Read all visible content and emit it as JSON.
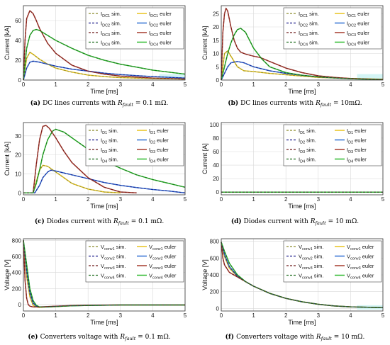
{
  "colors": {
    "DC1": "#e8c21e",
    "DC2": "#2f6fd3",
    "DC3": "#a63a2c",
    "DC4": "#2db82d",
    "sim_1": "#8a8a2a",
    "sim_2": "#1b1b8a",
    "sim_3": "#6e1a1a",
    "sim_4": "#1b6b1b",
    "grid": "#d9d9d9",
    "fill_1": "#c9f2f2",
    "fill_2": "#cfeee0"
  },
  "chart_data": [
    {
      "type": "line",
      "caption_label": "(a)",
      "caption_text": "DC lines currents with",
      "caption_r_sym": "R",
      "caption_r_sub": "fault",
      "caption_value": " = 0.1 mΩ.",
      "xlabel": "Time [ms]",
      "ylabel": "Current [kA]",
      "xlim": [
        0,
        5
      ],
      "ylim": [
        0,
        75
      ],
      "xticks": [
        "0",
        "1",
        "2",
        "3",
        "4",
        "5"
      ],
      "yticks": [
        "0",
        "20",
        "40",
        "60"
      ],
      "yticks_values": [
        0,
        20,
        40,
        60
      ],
      "grid": true,
      "legend_position": "top-right",
      "legend": {
        "sim": [
          "I",
          "I",
          "I",
          "I"
        ],
        "sim_sub": [
          "DC1",
          "DC2",
          "DC3",
          "DC4"
        ],
        "sim_suffix": "sim.",
        "euler": [
          "I",
          "I",
          "I",
          "I"
        ],
        "euler_sub": [
          "DC1",
          "DC2",
          "DC3",
          "DC4"
        ],
        "euler_suffix": "euler"
      },
      "series": [
        {
          "x": [
            0,
            0.1,
            0.2,
            0.3,
            0.5,
            0.75,
            1,
            1.5,
            2,
            2.5,
            3,
            3.5,
            4,
            5
          ],
          "y": [
            0,
            22,
            28,
            26,
            21,
            16,
            12,
            8,
            5,
            3.5,
            2.5,
            2,
            1.5,
            1
          ]
        },
        {
          "x": [
            0,
            0.1,
            0.2,
            0.3,
            0.5,
            0.75,
            1,
            1.5,
            2,
            2.5,
            3,
            3.5,
            4,
            5
          ],
          "y": [
            0,
            12,
            18,
            19,
            18,
            16,
            14,
            11,
            9,
            7,
            5.5,
            4.5,
            3.5,
            2
          ]
        },
        {
          "x": [
            0,
            0.05,
            0.1,
            0.2,
            0.3,
            0.4,
            0.5,
            0.75,
            1,
            1.5,
            2,
            2.5,
            3,
            3.5,
            4,
            5
          ],
          "y": [
            0,
            40,
            62,
            70,
            67,
            60,
            52,
            37,
            27,
            15,
            9,
            6,
            4,
            3,
            2,
            1
          ]
        },
        {
          "x": [
            0,
            0.1,
            0.2,
            0.3,
            0.4,
            0.5,
            0.75,
            1,
            1.5,
            2,
            2.5,
            3,
            3.5,
            4,
            5
          ],
          "y": [
            0,
            32,
            45,
            50,
            51,
            50,
            45,
            40,
            32,
            25,
            20,
            16,
            13,
            10,
            6
          ]
        }
      ]
    },
    {
      "type": "line",
      "caption_label": "(b)",
      "caption_text": "DC lines currents with",
      "caption_r_sym": "R",
      "caption_r_sub": "fault",
      "caption_value": " = 10mΩ.",
      "xlabel": "Time [ms]",
      "ylabel": "Current [kA]",
      "xlim": [
        0,
        5
      ],
      "ylim": [
        0,
        28
      ],
      "xticks": [
        "0",
        "1",
        "2",
        "3",
        "4",
        "5"
      ],
      "yticks": [
        "0",
        "5",
        "10",
        "15",
        "20",
        "25"
      ],
      "yticks_values": [
        0,
        5,
        10,
        15,
        20,
        25
      ],
      "grid": true,
      "legend_position": "top-right",
      "legend": {
        "sim": [
          "I",
          "I",
          "I",
          "I"
        ],
        "sim_sub": [
          "DC1",
          "DC2",
          "DC3",
          "DC4"
        ],
        "sim_suffix": "sim.",
        "euler": [
          "I",
          "I",
          "I",
          "I"
        ],
        "euler_sub": [
          "DC1",
          "DC2",
          "DC3",
          "DC4"
        ],
        "euler_suffix": "euler"
      },
      "series": [
        {
          "x": [
            0,
            0.1,
            0.2,
            0.3,
            0.5,
            0.7,
            1,
            1.5,
            2,
            2.5,
            3,
            3.5,
            4,
            5
          ],
          "y": [
            0,
            10,
            11,
            9,
            5,
            3.5,
            3.2,
            2.5,
            2,
            1.5,
            1,
            0.8,
            0.6,
            0.3
          ]
        },
        {
          "x": [
            0,
            0.1,
            0.2,
            0.3,
            0.5,
            0.7,
            1,
            1.5,
            2,
            2.5,
            3,
            3.5,
            4,
            5
          ],
          "y": [
            0,
            2.5,
            5,
            6.5,
            7,
            6.5,
            5,
            3.5,
            2.5,
            1.8,
            1.2,
            0.8,
            0.5,
            0.2
          ]
        },
        {
          "x": [
            0,
            0.05,
            0.1,
            0.15,
            0.2,
            0.3,
            0.4,
            0.5,
            0.6,
            0.75,
            1,
            1.2,
            1.5,
            2,
            2.5,
            3,
            3.5,
            4,
            5
          ],
          "y": [
            0,
            18,
            25,
            27,
            26,
            20,
            15,
            12,
            10.5,
            9.8,
            9,
            8.5,
            7,
            4.5,
            2.8,
            1.6,
            1,
            0.6,
            0.2
          ]
        },
        {
          "x": [
            0,
            0.1,
            0.2,
            0.3,
            0.4,
            0.5,
            0.6,
            0.75,
            1,
            1.25,
            1.5,
            2,
            2.5,
            3,
            3.5,
            4,
            5
          ],
          "y": [
            0,
            5,
            10,
            14,
            17,
            19,
            19.5,
            18,
            12,
            8,
            5,
            2.8,
            1.8,
            1.2,
            0.8,
            0.5,
            0.2
          ]
        }
      ]
    },
    {
      "type": "line",
      "caption_label": "(c)",
      "caption_text": "Diodes current with",
      "caption_r_sym": "R",
      "caption_r_sub": "fault",
      "caption_value": " = 0.1 mΩ.",
      "xlabel": "Time [ms]",
      "ylabel": "Current [kA]",
      "xlim": [
        0,
        5
      ],
      "ylim": [
        -1,
        37
      ],
      "xticks": [
        "0",
        "1",
        "2",
        "3",
        "4",
        "5"
      ],
      "yticks": [
        "0",
        "10",
        "20",
        "30"
      ],
      "yticks_values": [
        0,
        10,
        20,
        30
      ],
      "grid": true,
      "legend_position": "top-right",
      "legend": {
        "sim": [
          "I",
          "I",
          "I",
          "I"
        ],
        "sim_sub": [
          "D1",
          "D2",
          "D3",
          "D4"
        ],
        "sim_suffix": "sim.",
        "euler": [
          "I",
          "I",
          "I",
          "I"
        ],
        "euler_sub": [
          "D1",
          "D2",
          "D3",
          "D4"
        ],
        "euler_suffix": "euler"
      },
      "series": [
        {
          "x": [
            0,
            0.3,
            0.4,
            0.5,
            0.6,
            0.75,
            1,
            1.25,
            1.5,
            2,
            2.5,
            3
          ],
          "y": [
            0,
            0,
            6,
            12,
            14.5,
            14,
            11,
            8,
            5,
            2,
            0.5,
            0
          ]
        },
        {
          "x": [
            0,
            0.35,
            0.5,
            0.6,
            0.75,
            0.85,
            1,
            1.5,
            2,
            2.5,
            3,
            3.5,
            4,
            4.5,
            5
          ],
          "y": [
            0,
            0,
            4,
            8,
            11,
            12,
            11.5,
            9.5,
            7.5,
            5.5,
            4,
            2.8,
            1.8,
            1,
            0
          ]
        },
        {
          "x": [
            0,
            0.3,
            0.4,
            0.5,
            0.6,
            0.7,
            0.8,
            1,
            1.25,
            1.5,
            2,
            2.5,
            3,
            3.5
          ],
          "y": [
            0,
            0,
            15,
            28,
            35,
            35.5,
            34,
            29,
            22,
            16,
            8,
            3,
            0.5,
            0
          ]
        },
        {
          "x": [
            0,
            0.3,
            0.4,
            0.5,
            0.6,
            0.75,
            0.9,
            1,
            1.25,
            1.5,
            2,
            2.5,
            3,
            3.5,
            4,
            4.5,
            5
          ],
          "y": [
            0,
            0,
            5,
            12,
            20,
            28,
            32.5,
            33.5,
            32,
            29,
            23,
            17,
            13,
            9.5,
            7,
            5,
            3
          ]
        }
      ]
    },
    {
      "type": "line",
      "caption_label": "(d)",
      "caption_text": "Diodes current with",
      "caption_r_sym": "R",
      "caption_r_sub": "fault",
      "caption_value": " = 10 mΩ.",
      "xlabel": "Time [ms]",
      "ylabel": "Current [A]",
      "xlim": [
        0,
        5
      ],
      "ylim": [
        -4,
        103
      ],
      "xticks": [
        "0",
        "1",
        "2",
        "3",
        "4",
        "5"
      ],
      "yticks": [
        "0",
        "20",
        "40",
        "60",
        "80",
        "100"
      ],
      "yticks_values": [
        0,
        20,
        40,
        60,
        80,
        100
      ],
      "grid": true,
      "legend_position": "top-right",
      "legend": {
        "sim": [
          "I",
          "I",
          "I",
          "I"
        ],
        "sim_sub": [
          "D1",
          "D2",
          "D3",
          "D4"
        ],
        "sim_suffix": "sim.",
        "euler": [
          "I",
          "I",
          "I",
          "I"
        ],
        "euler_sub": [
          "D1",
          "D2",
          "D3",
          "D4"
        ],
        "euler_suffix": "euler"
      },
      "series": [
        {
          "x": [
            0,
            5
          ],
          "y": [
            0,
            0
          ]
        },
        {
          "x": [
            0,
            5
          ],
          "y": [
            0,
            0
          ]
        },
        {
          "x": [
            0,
            5
          ],
          "y": [
            0,
            0
          ]
        },
        {
          "x": [
            0,
            5
          ],
          "y": [
            0,
            0
          ]
        }
      ]
    },
    {
      "type": "line",
      "caption_label": "(e)",
      "caption_text": "Converters voltage with",
      "caption_r_sym": "R",
      "caption_r_sub": "fault",
      "caption_value": " = 0.1 mΩ.",
      "xlabel": "Time [ms]",
      "ylabel": "Voltage [V]",
      "xlim": [
        0,
        5
      ],
      "ylim": [
        -80,
        820
      ],
      "xticks": [
        "0",
        "1",
        "2",
        "3",
        "4",
        "5"
      ],
      "yticks": [
        "0",
        "200",
        "400",
        "600",
        "800"
      ],
      "yticks_values": [
        0,
        200,
        400,
        600,
        800
      ],
      "grid": true,
      "legend_position": "top-right",
      "legend": {
        "sim": [
          "V",
          "V",
          "V",
          "V"
        ],
        "sim_sub": [
          "conv1",
          "conv2",
          "conv3",
          "conv4"
        ],
        "sim_suffix": "sim.",
        "euler": [
          "V",
          "V",
          "V",
          "V"
        ],
        "euler_sub": [
          "conv1",
          "conv2",
          "conv3",
          "conv4"
        ],
        "euler_suffix": "euler"
      },
      "series": [
        {
          "x": [
            0,
            0.1,
            0.2,
            0.3,
            0.4,
            0.5,
            0.75,
            1,
            1.5,
            2,
            3,
            4,
            5
          ],
          "y": [
            800,
            350,
            100,
            -10,
            -30,
            -35,
            -30,
            -25,
            -15,
            -10,
            -5,
            -5,
            -5
          ]
        },
        {
          "x": [
            0,
            0.1,
            0.2,
            0.3,
            0.4,
            0.5,
            0.75,
            1,
            1.5,
            2,
            3,
            4,
            5
          ],
          "y": [
            800,
            420,
            150,
            20,
            -20,
            -30,
            -28,
            -22,
            -15,
            -10,
            -5,
            -5,
            -5
          ]
        },
        {
          "x": [
            0,
            0.05,
            0.1,
            0.15,
            0.2,
            0.3,
            0.5,
            0.75,
            1,
            1.5,
            2,
            3,
            4,
            5
          ],
          "y": [
            800,
            300,
            80,
            0,
            -20,
            -30,
            -30,
            -25,
            -20,
            -12,
            -8,
            -5,
            -5,
            -5
          ]
        },
        {
          "x": [
            0,
            0.1,
            0.2,
            0.3,
            0.4,
            0.5,
            0.75,
            1,
            1.5,
            2,
            3,
            4,
            5
          ],
          "y": [
            800,
            500,
            200,
            50,
            -10,
            -30,
            -30,
            -25,
            -15,
            -10,
            -5,
            -5,
            -5
          ]
        }
      ]
    },
    {
      "type": "line",
      "caption_label": "(f)",
      "caption_text": "Converters voltage with",
      "caption_r_sym": "R",
      "caption_r_sub": "fault",
      "caption_value": " = 10 mΩ.",
      "xlabel": "Time [ms]",
      "ylabel": "Voltage [V]",
      "xlim": [
        0,
        5
      ],
      "ylim": [
        -30,
        830
      ],
      "xticks": [
        "0",
        "1",
        "2",
        "3",
        "4",
        "5"
      ],
      "yticks": [
        "0",
        "200",
        "400",
        "600",
        "800"
      ],
      "yticks_values": [
        0,
        200,
        400,
        600,
        800
      ],
      "grid": true,
      "legend_position": "top-right",
      "legend": {
        "sim": [
          "V",
          "V",
          "V",
          "V"
        ],
        "sim_sub": [
          "conv1",
          "conv2",
          "conv3",
          "conv4"
        ],
        "sim_suffix": "sim.",
        "euler": [
          "V",
          "V",
          "V",
          "V"
        ],
        "euler_sub": [
          "conv1",
          "conv2",
          "conv3",
          "conv4"
        ],
        "euler_suffix": "euler"
      },
      "series": [
        {
          "x": [
            0,
            0.1,
            0.25,
            0.5,
            0.75,
            1,
            1.5,
            2,
            2.5,
            3,
            3.5,
            4,
            5
          ],
          "y": [
            790,
            620,
            480,
            380,
            320,
            265,
            180,
            120,
            80,
            50,
            30,
            20,
            10
          ]
        },
        {
          "x": [
            0,
            0.1,
            0.25,
            0.5,
            0.75,
            1,
            1.5,
            2,
            2.5,
            3,
            3.5,
            4,
            5
          ],
          "y": [
            790,
            640,
            500,
            385,
            320,
            265,
            180,
            120,
            80,
            50,
            30,
            20,
            10
          ]
        },
        {
          "x": [
            0,
            0.05,
            0.1,
            0.25,
            0.5,
            0.75,
            1,
            1.5,
            2,
            2.5,
            3,
            3.5,
            4,
            5
          ],
          "y": [
            790,
            600,
            520,
            430,
            375,
            320,
            265,
            180,
            120,
            80,
            50,
            30,
            20,
            10
          ]
        },
        {
          "x": [
            0,
            0.1,
            0.25,
            0.5,
            0.75,
            1,
            1.5,
            2,
            2.5,
            3,
            3.5,
            4,
            5
          ],
          "y": [
            790,
            680,
            540,
            400,
            320,
            265,
            180,
            120,
            80,
            50,
            30,
            20,
            10
          ]
        }
      ]
    }
  ]
}
